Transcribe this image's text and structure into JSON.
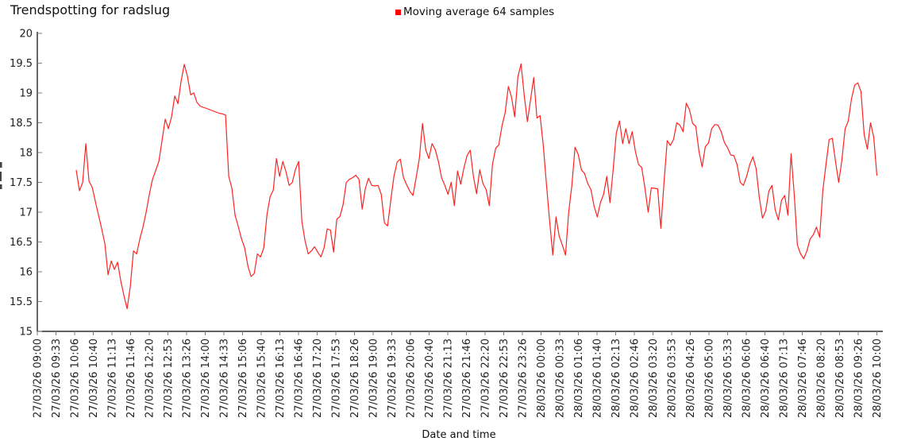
{
  "title": "Trendspotting for radslug",
  "legend": {
    "label": "Moving average 64 samples",
    "color": "#ff0000"
  },
  "chart_data": {
    "type": "line",
    "title": "Trendspotting for radslug",
    "xlabel": "Date and time",
    "ylabel": "",
    "ylim": [
      15,
      20
    ],
    "grid": false,
    "legend_position": "top-center",
    "line_color": "#ff2222",
    "axis_color": "#000000",
    "tick_color": "#808080",
    "y_tick_labels": [
      "15",
      "15.5",
      "16",
      "16.5",
      "17",
      "17.5",
      "18",
      "18.5",
      "19",
      "19.5",
      "20"
    ],
    "x_axis_span_hours": 25,
    "x_tick_labels": [
      "27/03/26 09:00",
      "27/03/26 09:33",
      "27/03/26 10:06",
      "27/03/26 10:40",
      "27/03/26 11:13",
      "27/03/26 11:46",
      "27/03/26 12:20",
      "27/03/26 12:53",
      "27/03/26 13:26",
      "27/03/26 14:00",
      "27/03/26 14:33",
      "27/03/26 15:06",
      "27/03/26 15:40",
      "27/03/26 16:13",
      "27/03/26 16:46",
      "27/03/26 17:20",
      "27/03/26 17:53",
      "27/03/26 18:26",
      "27/03/26 19:00",
      "27/03/26 19:33",
      "27/03/26 20:06",
      "27/03/26 20:40",
      "27/03/26 21:13",
      "27/03/26 21:46",
      "27/03/26 22:20",
      "27/03/26 22:53",
      "27/03/26 23:26",
      "28/03/26 00:00",
      "28/03/26 00:33",
      "28/03/26 01:06",
      "28/03/26 01:40",
      "28/03/26 02:13",
      "28/03/26 02:46",
      "28/03/26 03:20",
      "28/03/26 03:53",
      "28/03/26 04:26",
      "28/03/26 05:00",
      "28/03/26 05:33",
      "28/03/26 06:06",
      "28/03/26 06:40",
      "28/03/26 07:13",
      "28/03/26 07:46",
      "28/03/26 08:20",
      "28/03/26 08:53",
      "28/03/26 09:26",
      "28/03/26 10:00"
    ],
    "series": [
      {
        "name": "Moving average 64 samples",
        "x_unit": "hours since 27/03/26 09:00",
        "t0": 1.16,
        "dt": 0.0946,
        "values": [
          17.7,
          17.36,
          17.5,
          18.15,
          17.52,
          17.42,
          17.18,
          16.95,
          16.72,
          16.47,
          15.95,
          16.18,
          16.04,
          16.16,
          15.85,
          15.6,
          15.38,
          15.75,
          16.35,
          16.3,
          16.55,
          16.75,
          17.0,
          17.3,
          17.55,
          17.7,
          17.85,
          18.2,
          18.56,
          18.4,
          18.6,
          18.95,
          18.82,
          19.2,
          19.48,
          19.28,
          18.97,
          19.0,
          18.84,
          18.78,
          18.76,
          18.74,
          18.72,
          18.7,
          18.68,
          18.66,
          18.65,
          18.63,
          17.6,
          17.4,
          16.95,
          16.76,
          16.55,
          16.4,
          16.1,
          15.92,
          15.97,
          16.3,
          16.25,
          16.4,
          16.95,
          17.26,
          17.37,
          17.9,
          17.6,
          17.85,
          17.68,
          17.45,
          17.5,
          17.72,
          17.85,
          16.85,
          16.52,
          16.3,
          16.35,
          16.42,
          16.33,
          16.25,
          16.4,
          16.72,
          16.7,
          16.33,
          16.88,
          16.93,
          17.13,
          17.5,
          17.55,
          17.58,
          17.62,
          17.55,
          17.05,
          17.4,
          17.57,
          17.45,
          17.44,
          17.45,
          17.3,
          16.82,
          16.77,
          17.2,
          17.6,
          17.84,
          17.89,
          17.58,
          17.46,
          17.35,
          17.28,
          17.58,
          17.9,
          18.49,
          18.05,
          17.9,
          18.15,
          18.05,
          17.85,
          17.58,
          17.45,
          17.3,
          17.5,
          17.11,
          17.69,
          17.47,
          17.74,
          17.95,
          18.04,
          17.6,
          17.31,
          17.71,
          17.48,
          17.38,
          17.11,
          17.8,
          18.07,
          18.13,
          18.45,
          18.67,
          19.11,
          18.93,
          18.6,
          19.27,
          19.49,
          18.96,
          18.52,
          18.89,
          19.26,
          18.58,
          18.62,
          18.12,
          17.47,
          16.85,
          16.28,
          16.92,
          16.6,
          16.45,
          16.28,
          17.0,
          17.45,
          18.09,
          17.97,
          17.71,
          17.65,
          17.48,
          17.38,
          17.1,
          16.92,
          17.16,
          17.3,
          17.6,
          17.16,
          17.71,
          18.33,
          18.53,
          18.15,
          18.4,
          18.15,
          18.35,
          18.02,
          17.8,
          17.75,
          17.4,
          17.0,
          17.41,
          17.4,
          17.39,
          16.73,
          17.5,
          18.2,
          18.12,
          18.22,
          18.5,
          18.46,
          18.35,
          18.83,
          18.72,
          18.49,
          18.44,
          18.02,
          17.76,
          18.1,
          18.16,
          18.4,
          18.47,
          18.46,
          18.35,
          18.17,
          18.08,
          17.96,
          17.95,
          17.8,
          17.5,
          17.45,
          17.6,
          17.8,
          17.93,
          17.73,
          17.25,
          16.9,
          17.02,
          17.35,
          17.45,
          17.04,
          16.87,
          17.2,
          17.28,
          16.95,
          17.98,
          17.3,
          16.45,
          16.3,
          16.22,
          16.35,
          16.55,
          16.62,
          16.75,
          16.58,
          17.36,
          17.8,
          18.22,
          18.24,
          17.85,
          17.5,
          17.87,
          18.4,
          18.53,
          18.9,
          19.13,
          19.17,
          19.02,
          18.3,
          18.06,
          18.5,
          18.26,
          17.62
        ]
      }
    ]
  }
}
